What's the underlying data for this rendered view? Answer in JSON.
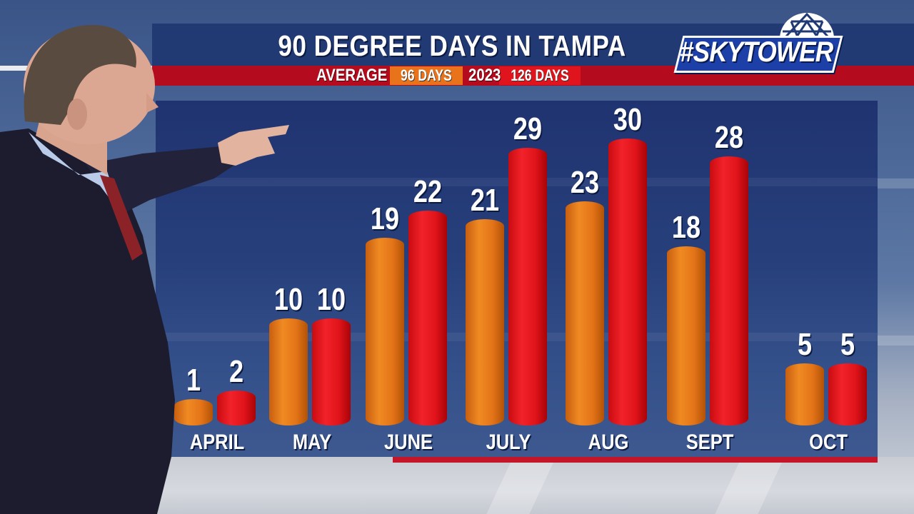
{
  "header": {
    "title": "90 DEGREE DAYS IN TAMPA",
    "average_label": "AVERAGE",
    "average_value": "96 DAYS",
    "year_label": "2023",
    "year_value": "126 DAYS"
  },
  "logo": {
    "text": "#SKYTOWER"
  },
  "colors": {
    "average": "#e8731a",
    "year_2023": "#e0141c",
    "header_navy": "#213a74",
    "header_red": "#b40c1e"
  },
  "chart_data": {
    "type": "bar",
    "title": "90 DEGREE DAYS IN TAMPA",
    "subtitle": "AVERAGE 96 DAYS | 2023 126 DAYS",
    "categories": [
      "APRIL",
      "MAY",
      "JUNE",
      "JULY",
      "AUG",
      "SEPT",
      "OCT"
    ],
    "series": [
      {
        "name": "Average",
        "color": "#e8731a",
        "values": [
          1,
          10,
          19,
          21,
          23,
          18,
          5
        ]
      },
      {
        "name": "2023",
        "color": "#e0141c",
        "values": [
          2,
          10,
          22,
          29,
          30,
          28,
          5
        ]
      }
    ],
    "totals": {
      "Average": 96,
      "2023": 126
    },
    "xlabel": "",
    "ylabel": "",
    "ylim": [
      0,
      32
    ],
    "grid": false,
    "legend_position": "top (subtitle bar)"
  }
}
